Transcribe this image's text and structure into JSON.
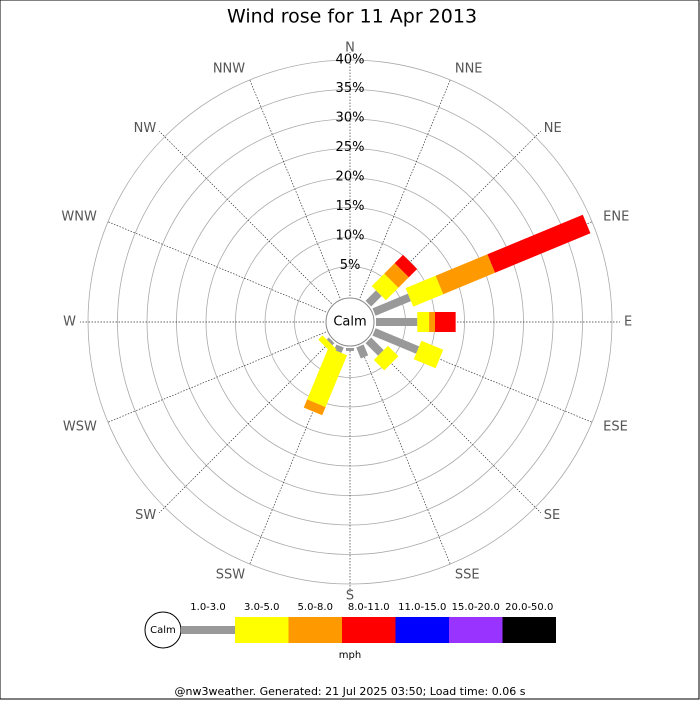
{
  "chart_data": {
    "type": "windrose",
    "title": "Wind rose for 11 Apr 2013",
    "directions": [
      "N",
      "NNE",
      "NE",
      "ENE",
      "E",
      "ESE",
      "SE",
      "SSE",
      "S",
      "SSW",
      "SW",
      "WSW",
      "W",
      "WNW",
      "NW",
      "NNW"
    ],
    "calm_label": "Calm",
    "rlim": [
      0,
      40
    ],
    "rticks": [
      {
        "value": 5,
        "label": "5%"
      },
      {
        "value": 10,
        "label": "10%"
      },
      {
        "value": 15,
        "label": "15%"
      },
      {
        "value": 20,
        "label": "20%"
      },
      {
        "value": 25,
        "label": "25%"
      },
      {
        "value": 30,
        "label": "30%"
      },
      {
        "value": 35,
        "label": "35%"
      },
      {
        "value": 40,
        "label": "40%"
      }
    ],
    "series": [
      {
        "name": "1.0-3.0",
        "color": "#999999",
        "values": [
          0,
          0,
          2.5,
          6.5,
          7,
          8,
          3,
          2,
          0.5,
          1,
          0.5,
          0,
          0,
          0,
          0,
          0
        ]
      },
      {
        "name": "3.0-5.0",
        "color": "#ffff00",
        "values": [
          0,
          0,
          3,
          5.5,
          2,
          4,
          2.5,
          0,
          0,
          9.5,
          1,
          0,
          0,
          0,
          0,
          0
        ]
      },
      {
        "name": "5.0-8.0",
        "color": "#ff9900",
        "values": [
          0,
          0,
          2.5,
          9.5,
          1,
          0,
          0,
          0,
          0,
          1.5,
          0,
          0,
          0,
          0,
          0,
          0
        ]
      },
      {
        "name": "8.0-11.0",
        "color": "#ff0000",
        "values": [
          0,
          0,
          2,
          17.5,
          3.5,
          0,
          0,
          0,
          0,
          0,
          0,
          0,
          0,
          0,
          0,
          0
        ]
      },
      {
        "name": "11.0-15.0",
        "color": "#0000ff",
        "values": [
          0,
          0,
          0,
          0,
          0,
          0,
          0,
          0,
          0,
          0,
          0,
          0,
          0,
          0,
          0,
          0
        ]
      },
      {
        "name": "15.0-20.0",
        "color": "#9933ff",
        "values": [
          0,
          0,
          0,
          0,
          0,
          0,
          0,
          0,
          0,
          0,
          0,
          0,
          0,
          0,
          0,
          0
        ]
      },
      {
        "name": "20.0-50.0",
        "color": "#000000",
        "values": [
          0,
          0,
          0,
          0,
          0,
          0,
          0,
          0,
          0,
          0,
          0,
          0,
          0,
          0,
          0,
          0
        ]
      }
    ],
    "legend_unit": "mph",
    "footer": "@nw3weather. Generated: 21 Jul 2025 03:50; Load time: 0.06 s"
  }
}
